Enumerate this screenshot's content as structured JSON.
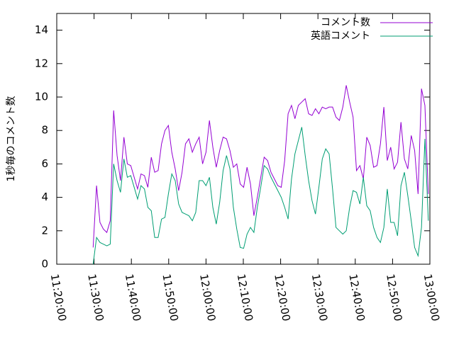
{
  "chart_data": {
    "type": "line",
    "ylabel": "1秒毎のコメント数",
    "xlim": [
      "11:20:00",
      "13:00:00"
    ],
    "xticks": [
      "11:20:00",
      "11:30:00",
      "11:40:00",
      "11:50:00",
      "12:00:00",
      "12:10:00",
      "12:20:00",
      "12:30:00",
      "12:40:00",
      "12:50:00",
      "13:00:00"
    ],
    "ylim": [
      0,
      15
    ],
    "yticks": [
      0,
      2,
      4,
      6,
      8,
      10,
      12,
      14
    ],
    "legend": "upper right",
    "x": [
      "11:29:45",
      "11:30:40",
      "11:31:35",
      "11:32:30",
      "11:33:25",
      "11:34:20",
      "11:35:15",
      "11:36:10",
      "11:37:05",
      "11:38:00",
      "11:38:55",
      "11:39:50",
      "11:40:45",
      "11:41:40",
      "11:42:35",
      "11:43:30",
      "11:44:25",
      "11:45:20",
      "11:46:15",
      "11:47:10",
      "11:48:05",
      "11:49:00",
      "11:49:55",
      "11:50:50",
      "11:51:45",
      "11:52:40",
      "11:53:35",
      "11:54:30",
      "11:55:25",
      "11:56:20",
      "11:57:15",
      "11:58:10",
      "11:59:05",
      "12:00:00",
      "12:00:55",
      "12:01:50",
      "12:02:45",
      "12:03:40",
      "12:04:35",
      "12:05:30",
      "12:06:25",
      "12:07:20",
      "12:08:15",
      "12:09:10",
      "12:10:05",
      "12:11:00",
      "12:11:55",
      "12:12:50",
      "12:13:45",
      "12:14:40",
      "12:15:35",
      "12:16:30",
      "12:17:25",
      "12:18:20",
      "12:19:15",
      "12:20:10",
      "12:21:05",
      "12:22:00",
      "12:22:55",
      "12:23:50",
      "12:24:45",
      "12:25:40",
      "12:26:35",
      "12:27:30",
      "12:28:25",
      "12:29:20",
      "12:30:15",
      "12:31:10",
      "12:32:05",
      "12:33:00",
      "12:33:55",
      "12:34:50",
      "12:35:45",
      "12:36:40",
      "12:37:35",
      "12:38:30",
      "12:39:25",
      "12:40:20",
      "12:41:15",
      "12:42:10",
      "12:43:05",
      "12:44:00",
      "12:44:55",
      "12:45:50",
      "12:46:45",
      "12:47:40",
      "12:48:35",
      "12:49:30",
      "12:50:25",
      "12:51:20",
      "12:52:15",
      "12:53:10",
      "12:54:05",
      "12:55:00",
      "12:55:55",
      "12:56:50",
      "12:57:45",
      "12:58:40",
      "12:59:35"
    ],
    "series": [
      {
        "name": "コメント数",
        "color": "#9400d3",
        "values": [
          1,
          4.7,
          2.5,
          2.1,
          1.9,
          2.6,
          9.2,
          6.5,
          5,
          7.6,
          6,
          5.9,
          5.2,
          4.5,
          5.4,
          5.3,
          4.6,
          6.4,
          5.5,
          5.6,
          7.2,
          8,
          8.3,
          6.7,
          5.7,
          4.4,
          5.5,
          7.2,
          7.5,
          6.7,
          7.2,
          7.6,
          6,
          6.7,
          8.6,
          7,
          5.8,
          6.8,
          7.6,
          7.5,
          6.8,
          5.8,
          6,
          4.8,
          4.6,
          5.8,
          4.8,
          2.9,
          4,
          5.2,
          6.4,
          6.2,
          5.5,
          5.1,
          4.7,
          4.6,
          6.2,
          9,
          9.5,
          8.7,
          9.5,
          9.7,
          9.9,
          9,
          8.9,
          9.3,
          9,
          9.4,
          9.3,
          9.4,
          9.4,
          8.8,
          8.6,
          9.4,
          10.7,
          9.7,
          8.8,
          5.6,
          5.9,
          5.1,
          7.6,
          7.1,
          5.8,
          5.9,
          7.2,
          9.4,
          6.2,
          7,
          5.7,
          6.1,
          8.5,
          6.3,
          5.7,
          7.7,
          6.8,
          4.2,
          10.5,
          9.5,
          4.2
        ]
      },
      {
        "name": "英語コメント",
        "color": "#009e73",
        "values": [
          0,
          1.6,
          1.3,
          1.2,
          1.1,
          1.2,
          6,
          5,
          4.3,
          6.3,
          5.2,
          5.3,
          4.6,
          3.9,
          4.7,
          4.5,
          3.4,
          3.2,
          1.6,
          1.6,
          2.7,
          2.8,
          4.2,
          5.4,
          5,
          3.6,
          3.1,
          3,
          2.9,
          2.6,
          3.1,
          5,
          5,
          4.7,
          5.2,
          3.4,
          2.4,
          3.7,
          5.6,
          6.5,
          5.7,
          3.4,
          2.1,
          1,
          0.95,
          1.8,
          2.2,
          1.9,
          3.4,
          4.6,
          5.9,
          5.7,
          5.2,
          4.8,
          4.4,
          4,
          3.4,
          2.7,
          5.1,
          6.6,
          7.4,
          8.2,
          6.5,
          5,
          3.8,
          3,
          4.6,
          6.3,
          6.9,
          6.6,
          4.5,
          2.2,
          2,
          1.8,
          2,
          3.4,
          4.4,
          4.3,
          3.6,
          5.2,
          3.5,
          3.2,
          2.2,
          1.6,
          1.3,
          2.2,
          4.5,
          2.5,
          2.5,
          1.7,
          4.7,
          5.5,
          4.1,
          2.6,
          1,
          0.5,
          2.2,
          7.5,
          2.6
        ]
      }
    ]
  }
}
